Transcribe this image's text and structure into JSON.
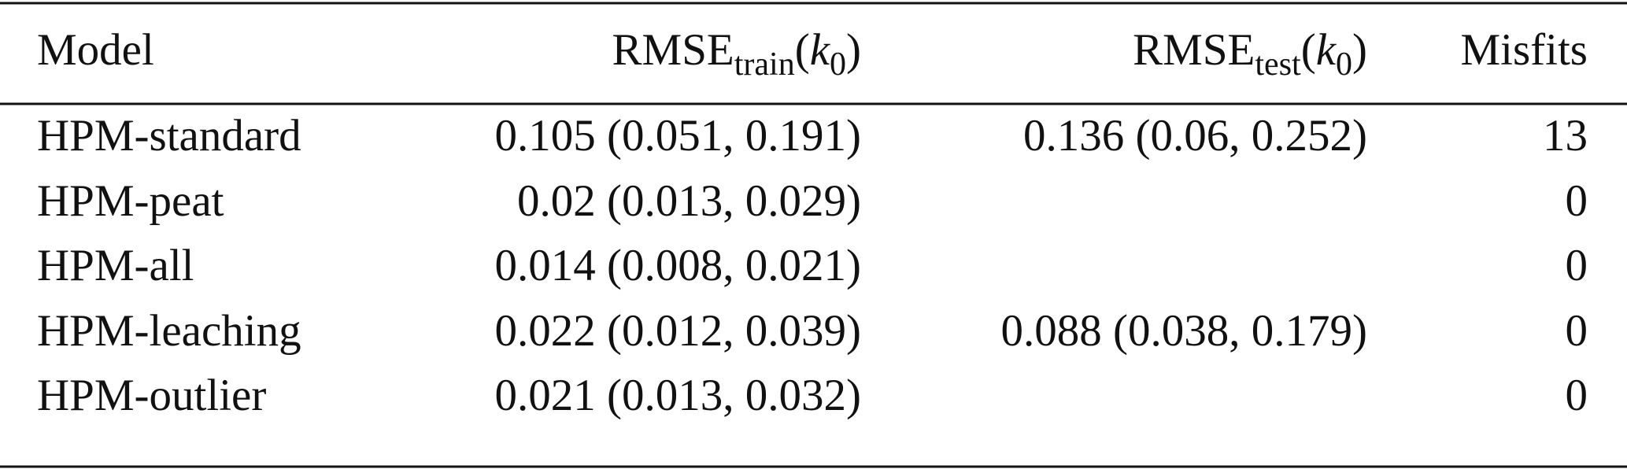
{
  "table": {
    "headers": [
      [
        {
          "text": "Model",
          "style": "normal"
        }
      ],
      [
        {
          "text": "RMSE",
          "style": "normal"
        },
        {
          "text": "train",
          "style": "sub"
        },
        {
          "text": "(",
          "style": "normal"
        },
        {
          "text": "k",
          "style": "italic"
        },
        {
          "text": "0",
          "style": "sub"
        },
        {
          "text": ")",
          "style": "normal"
        }
      ],
      [
        {
          "text": "RMSE",
          "style": "normal"
        },
        {
          "text": "test",
          "style": "sub"
        },
        {
          "text": "(",
          "style": "normal"
        },
        {
          "text": "k",
          "style": "italic"
        },
        {
          "text": "0",
          "style": "sub"
        },
        {
          "text": ")",
          "style": "normal"
        }
      ],
      [
        {
          "text": "Misfits",
          "style": "normal"
        }
      ]
    ],
    "rows": [
      [
        "HPM-standard",
        "0.105 (0.051, 0.191)",
        "0.136 (0.06, 0.252)",
        13
      ],
      [
        "HPM-peat",
        "0.02 (0.013, 0.029)",
        null,
        0
      ],
      [
        "HPM-all",
        "0.014 (0.008, 0.021)",
        null,
        0
      ],
      [
        "HPM-leaching",
        "0.022 (0.012, 0.039)",
        "0.088 (0.038, 0.179)",
        0
      ],
      [
        "HPM-outlier",
        "0.021 (0.013, 0.032)",
        null,
        0
      ]
    ]
  }
}
